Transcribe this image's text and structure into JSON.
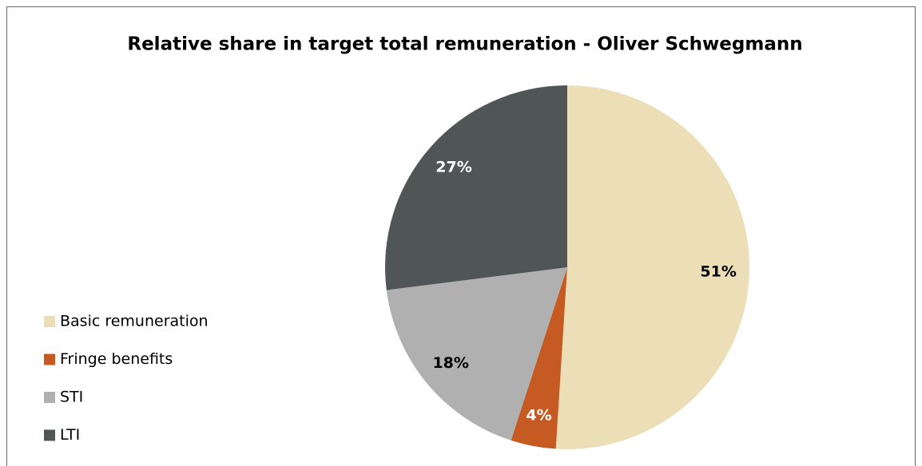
{
  "chart_data": {
    "type": "pie",
    "title": "Relative share in target total remuneration - Oliver Schwegmann",
    "categories": [
      "Basic remuneration",
      "Fringe benefits",
      "STI",
      "LTI"
    ],
    "values": [
      51,
      4,
      18,
      27
    ],
    "value_labels": [
      "51%",
      "4%",
      "18%",
      "27%"
    ],
    "colors": [
      "#ecdfb8",
      "#c55a22",
      "#b0b0b0",
      "#505656"
    ],
    "legend": "left"
  }
}
